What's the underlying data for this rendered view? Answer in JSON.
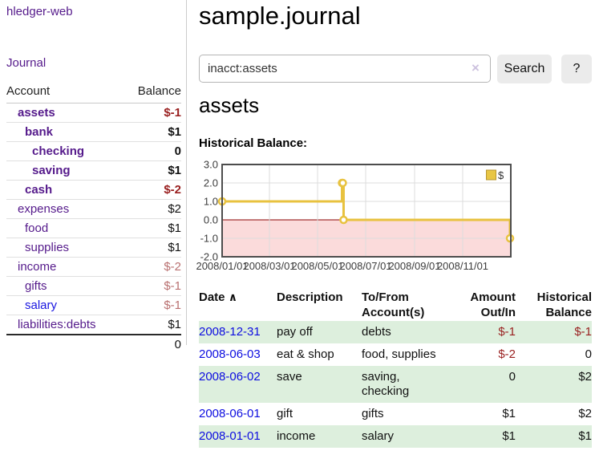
{
  "app": {
    "brand": "hledger-web",
    "nav_journal": "Journal"
  },
  "sidebar": {
    "columns": {
      "account": "Account",
      "balance": "Balance"
    },
    "accounts": [
      {
        "name": "assets",
        "indent": 1,
        "bold": true,
        "balance": "$-1",
        "negative": true
      },
      {
        "name": "bank",
        "indent": 2,
        "bold": true,
        "balance": "$1"
      },
      {
        "name": "checking",
        "indent": 3,
        "bold": true,
        "balance": "0"
      },
      {
        "name": "saving",
        "indent": 3,
        "bold": true,
        "balance": "$1"
      },
      {
        "name": "cash",
        "indent": 2,
        "bold": true,
        "balance": "$-2",
        "negative": true
      },
      {
        "name": "expenses",
        "indent": 1,
        "balance": "$2"
      },
      {
        "name": "food",
        "indent": 2,
        "balance": "$1"
      },
      {
        "name": "supplies",
        "indent": 2,
        "balance": "$1"
      },
      {
        "name": "income",
        "indent": 1,
        "balance": "$-2",
        "negative": true,
        "muted": true
      },
      {
        "name": "gifts",
        "indent": 2,
        "balance": "$-1",
        "negative": true,
        "muted": true
      },
      {
        "name": "salary",
        "indent": 2,
        "balance": "$-1",
        "negative": true,
        "muted": true,
        "unvisited": true
      },
      {
        "name": "liabilities:debts",
        "indent": 1,
        "balance": "$1"
      }
    ],
    "total": "0"
  },
  "header": {
    "title": "sample.journal"
  },
  "search": {
    "value": "inacct:assets",
    "clear_icon": "×",
    "button": "Search",
    "help_button": "?"
  },
  "account_page": {
    "heading": "assets",
    "chart_label": "Historical Balance:"
  },
  "chart_data": {
    "type": "line",
    "step": true,
    "title": "Historical Balance",
    "series": [
      {
        "name": "$",
        "color": "#e8c23f",
        "points": [
          {
            "date": "2008-01-01",
            "value": 1
          },
          {
            "date": "2008-06-01",
            "value": 2
          },
          {
            "date": "2008-06-02",
            "value": 2
          },
          {
            "date": "2008-06-03",
            "value": 0
          },
          {
            "date": "2008-12-31",
            "value": -1
          }
        ]
      }
    ],
    "x_range": [
      "2008-01-01",
      "2009-01-01"
    ],
    "x_ticks": [
      "2008/01/01",
      "2008/03/01",
      "2008/05/01",
      "2008/07/01",
      "2008/09/01",
      "2008/11/01"
    ],
    "y_ticks": [
      3.0,
      2.0,
      1.0,
      0.0,
      -1.0,
      -2.0
    ],
    "ylim": [
      -2,
      3
    ],
    "grid": true,
    "negative_fill": "#fbdbdb",
    "zero_line_color": "#8b0000",
    "grid_color": "#dcdcdc",
    "border_color": "#4d4d4d",
    "legend": {
      "label": "$",
      "position": "top-right",
      "swatch_color": "#e8c645",
      "swatch_border": "#b8962e"
    }
  },
  "register": {
    "columns": {
      "date": "Date",
      "sort_arrow": "∧",
      "description": "Description",
      "tofrom_line1": "To/From",
      "tofrom_line2": "Account(s)",
      "amount_line1": "Amount",
      "amount_line2": "Out/In",
      "hist_line1": "Historical",
      "hist_line2": "Balance"
    },
    "rows": [
      {
        "date": "2008-12-31",
        "description": "pay off",
        "accounts": [
          "debts"
        ],
        "amount": "$-1",
        "amount_neg": true,
        "balance": "$-1",
        "balance_neg": true
      },
      {
        "date": "2008-06-03",
        "description": "eat & shop",
        "accounts": [
          "food, supplies"
        ],
        "amount": "$-2",
        "amount_neg": true,
        "balance": "0",
        "balance_neg": false
      },
      {
        "date": "2008-06-02",
        "description": "save",
        "accounts": [
          "saving,",
          "checking"
        ],
        "amount": "0",
        "amount_neg": false,
        "balance": "$2",
        "balance_neg": false
      },
      {
        "date": "2008-06-01",
        "description": "gift",
        "accounts": [
          "gifts"
        ],
        "amount": "$1",
        "amount_neg": false,
        "balance": "$2",
        "balance_neg": false
      },
      {
        "date": "2008-01-01",
        "description": "income",
        "accounts": [
          "salary"
        ],
        "amount": "$1",
        "amount_neg": false,
        "balance": "$1",
        "balance_neg": false
      }
    ]
  }
}
